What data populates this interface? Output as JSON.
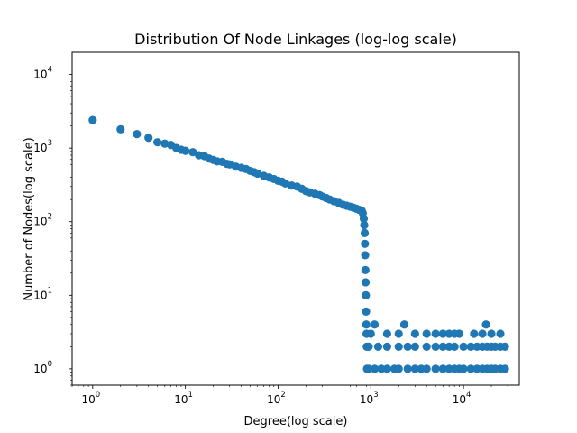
{
  "chart_data": {
    "type": "scatter",
    "title": "Distribution Of Node Linkages (log-log scale)",
    "xlabel": "Degree(log scale)",
    "ylabel": "Number of Nodes(log scale)",
    "xscale": "log",
    "yscale": "log",
    "xlim": [
      0.6,
      40000
    ],
    "ylim": [
      0.6,
      20000
    ],
    "grid": false,
    "legend": "none",
    "x_ticks": [
      {
        "value": 1,
        "label": "10",
        "exp": "0"
      },
      {
        "value": 10,
        "label": "10",
        "exp": "1"
      },
      {
        "value": 100,
        "label": "10",
        "exp": "2"
      },
      {
        "value": 1000,
        "label": "10",
        "exp": "3"
      },
      {
        "value": 10000,
        "label": "10",
        "exp": "4"
      }
    ],
    "y_ticks": [
      {
        "value": 1,
        "label": "10",
        "exp": "0"
      },
      {
        "value": 10,
        "label": "10",
        "exp": "1"
      },
      {
        "value": 100,
        "label": "10",
        "exp": "2"
      },
      {
        "value": 1000,
        "label": "10",
        "exp": "3"
      },
      {
        "value": 10000,
        "label": "10",
        "exp": "4"
      }
    ],
    "marker_color": "#1f77b4",
    "series": [
      {
        "points": [
          [
            1,
            2400
          ],
          [
            2,
            1800
          ],
          [
            3,
            1550
          ],
          [
            4,
            1380
          ],
          [
            5,
            1200
          ],
          [
            6,
            1150
          ],
          [
            7,
            1100
          ],
          [
            8,
            1000
          ],
          [
            9,
            950
          ],
          [
            10,
            920
          ],
          [
            12,
            880
          ],
          [
            14,
            800
          ],
          [
            16,
            780
          ],
          [
            18,
            720
          ],
          [
            20,
            690
          ],
          [
            22,
            660
          ],
          [
            25,
            650
          ],
          [
            28,
            610
          ],
          [
            30,
            600
          ],
          [
            35,
            560
          ],
          [
            40,
            540
          ],
          [
            45,
            520
          ],
          [
            50,
            490
          ],
          [
            55,
            470
          ],
          [
            60,
            450
          ],
          [
            70,
            420
          ],
          [
            80,
            400
          ],
          [
            90,
            380
          ],
          [
            100,
            360
          ],
          [
            110,
            350
          ],
          [
            120,
            330
          ],
          [
            140,
            310
          ],
          [
            160,
            300
          ],
          [
            180,
            280
          ],
          [
            200,
            260
          ],
          [
            220,
            250
          ],
          [
            250,
            240
          ],
          [
            280,
            230
          ],
          [
            300,
            220
          ],
          [
            330,
            210
          ],
          [
            360,
            200
          ],
          [
            400,
            190
          ],
          [
            450,
            180
          ],
          [
            500,
            170
          ],
          [
            550,
            165
          ],
          [
            600,
            160
          ],
          [
            650,
            155
          ],
          [
            700,
            150
          ],
          [
            750,
            145
          ],
          [
            800,
            140
          ],
          [
            820,
            130
          ],
          [
            840,
            110
          ],
          [
            850,
            90
          ],
          [
            860,
            70
          ],
          [
            865,
            50
          ],
          [
            870,
            35
          ],
          [
            875,
            22
          ],
          [
            880,
            15
          ],
          [
            885,
            10
          ],
          [
            890,
            6
          ],
          [
            895,
            4
          ],
          [
            900,
            3
          ],
          [
            905,
            2
          ],
          [
            910,
            1
          ],
          [
            1100,
            4
          ],
          [
            2300,
            4
          ],
          [
            17500,
            4
          ],
          [
            1000,
            3
          ],
          [
            1500,
            3
          ],
          [
            2000,
            3
          ],
          [
            3000,
            3
          ],
          [
            4000,
            3
          ],
          [
            5000,
            3
          ],
          [
            6000,
            3
          ],
          [
            7000,
            3
          ],
          [
            8000,
            3
          ],
          [
            9000,
            3
          ],
          [
            13000,
            3
          ],
          [
            16000,
            3
          ],
          [
            20000,
            3
          ],
          [
            25000,
            3
          ],
          [
            950,
            2
          ],
          [
            1200,
            2
          ],
          [
            1500,
            2
          ],
          [
            2000,
            2
          ],
          [
            2500,
            2
          ],
          [
            3000,
            2
          ],
          [
            4000,
            2
          ],
          [
            5000,
            2
          ],
          [
            6000,
            2
          ],
          [
            7000,
            2
          ],
          [
            8000,
            2
          ],
          [
            10000,
            2
          ],
          [
            12000,
            2
          ],
          [
            14000,
            2
          ],
          [
            16000,
            2
          ],
          [
            18000,
            2
          ],
          [
            20000,
            2
          ],
          [
            22000,
            2
          ],
          [
            25000,
            2
          ],
          [
            28000,
            2
          ],
          [
            950,
            1
          ],
          [
            1100,
            1
          ],
          [
            1300,
            1
          ],
          [
            1500,
            1
          ],
          [
            1800,
            1
          ],
          [
            2000,
            1
          ],
          [
            2500,
            1
          ],
          [
            3000,
            1
          ],
          [
            3500,
            1
          ],
          [
            4000,
            1
          ],
          [
            5000,
            1
          ],
          [
            6000,
            1
          ],
          [
            7000,
            1
          ],
          [
            8000,
            1
          ],
          [
            9000,
            1
          ],
          [
            10000,
            1
          ],
          [
            12000,
            1
          ],
          [
            14000,
            1
          ],
          [
            16000,
            1
          ],
          [
            18000,
            1
          ],
          [
            20000,
            1
          ],
          [
            22000,
            1
          ],
          [
            25000,
            1
          ],
          [
            28000,
            1
          ]
        ]
      }
    ]
  }
}
